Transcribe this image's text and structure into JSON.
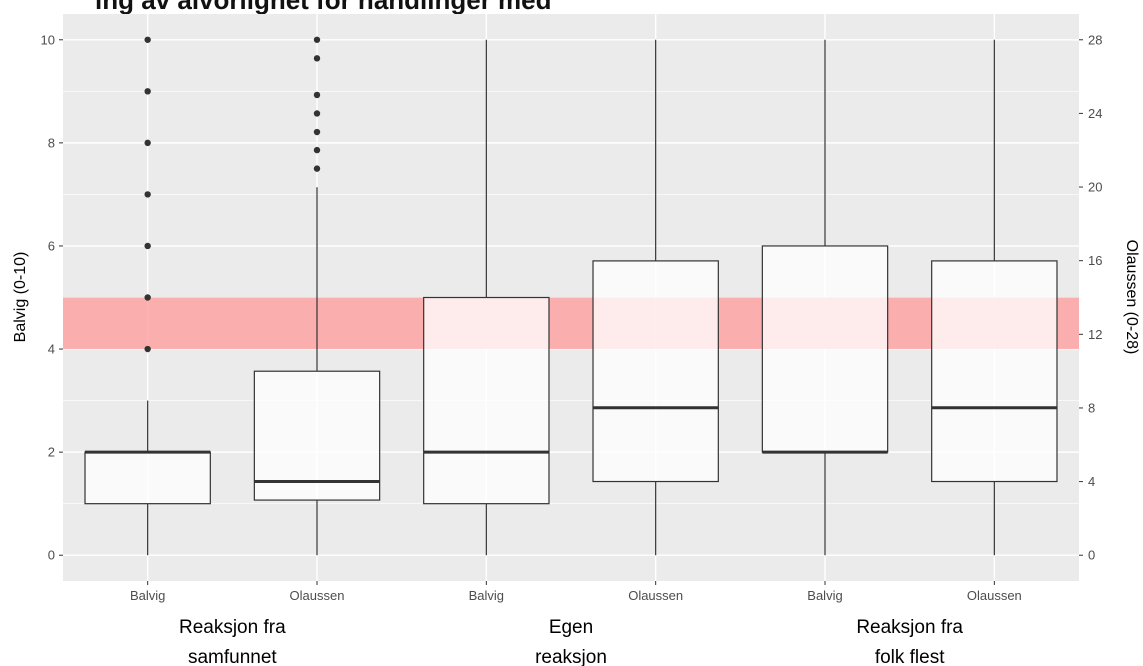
{
  "chart_data": {
    "type": "boxplot",
    "title": "ing av alvorlighet for handlinger med",
    "ylabel_left": "Balvig (0-10)",
    "ylabel_right": "Olaussen (0-28)",
    "left_axis": {
      "range": [
        -0.5,
        10.5
      ],
      "ticks": [
        0,
        2,
        4,
        6,
        8,
        10
      ]
    },
    "right_axis": {
      "ticks": [
        0,
        4,
        8,
        12,
        16,
        20,
        24,
        28
      ],
      "factor": 2.8
    },
    "highlight_band": {
      "from": 4,
      "to": 5,
      "color": "#ff9999"
    },
    "groups": [
      {
        "label_lines": [
          "Reaksjon fra",
          "samfunnet"
        ]
      },
      {
        "label_lines": [
          "Egen",
          "reaksjon"
        ]
      },
      {
        "label_lines": [
          "Reaksjon fra",
          "folk flest"
        ]
      }
    ],
    "boxes": [
      {
        "label": "Balvig",
        "group": 0,
        "min": 0,
        "q1": 1,
        "median": 2,
        "q3": 2,
        "max": 3,
        "outliers": [
          4,
          5,
          6,
          7,
          8,
          9,
          10
        ]
      },
      {
        "label": "Olaussen",
        "group": 0,
        "min": 0,
        "q1": 1.07,
        "median": 1.43,
        "q3": 3.57,
        "max": 7.14,
        "outliers": [
          7.5,
          7.86,
          8.21,
          8.57,
          8.93,
          9.64,
          10
        ]
      },
      {
        "label": "Balvig",
        "group": 1,
        "min": 0,
        "q1": 1,
        "median": 2,
        "q3": 5,
        "max": 10,
        "outliers": []
      },
      {
        "label": "Olaussen",
        "group": 1,
        "min": 0,
        "q1": 1.43,
        "median": 2.86,
        "q3": 5.71,
        "max": 10,
        "outliers": []
      },
      {
        "label": "Balvig",
        "group": 2,
        "min": 0,
        "q1": 2,
        "median": 2,
        "q3": 6,
        "max": 10,
        "outliers": []
      },
      {
        "label": "Olaussen",
        "group": 2,
        "min": 0,
        "q1": 1.43,
        "median": 2.86,
        "q3": 5.71,
        "max": 10,
        "outliers": []
      }
    ],
    "grid": true,
    "legend": "none"
  }
}
